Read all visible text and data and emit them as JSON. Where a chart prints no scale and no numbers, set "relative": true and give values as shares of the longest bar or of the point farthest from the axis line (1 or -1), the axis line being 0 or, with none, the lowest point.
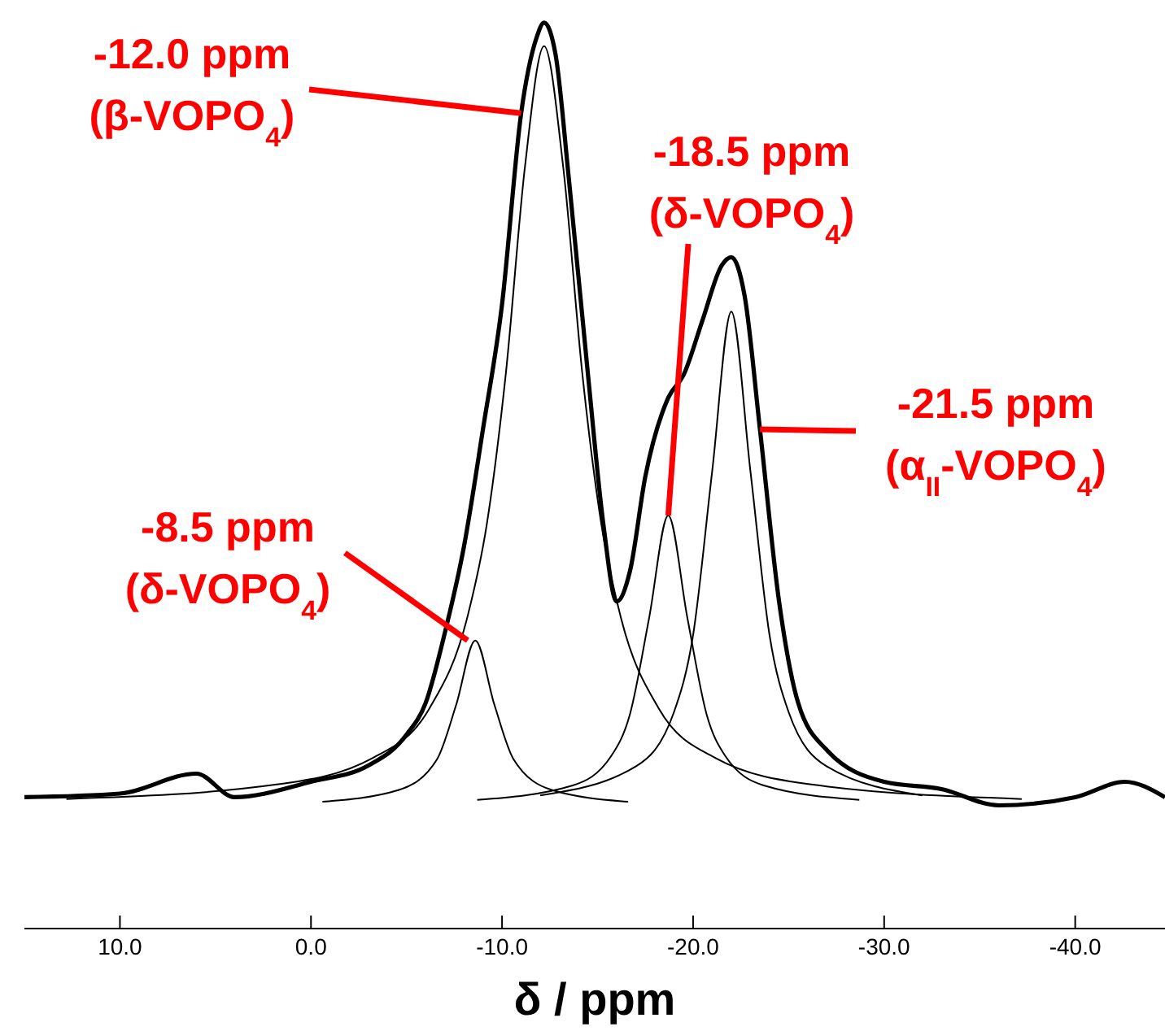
{
  "chart_data": {
    "type": "line",
    "relative": true,
    "xlabel": "δ / ppm",
    "xlim": [
      15,
      -44.7
    ],
    "xticks": [
      {
        "value": 10,
        "label": "10.0"
      },
      {
        "value": 0,
        "label": "0.0"
      },
      {
        "value": -10,
        "label": "-10.0"
      },
      {
        "value": -20,
        "label": "-20.0"
      },
      {
        "value": -30,
        "label": "-30.0"
      },
      {
        "value": -40,
        "label": "-40.0"
      }
    ],
    "grid": false,
    "legend": false,
    "marker": "none",
    "line_style": "solid",
    "series": [
      {
        "color": "#000000",
        "x": [
          15,
          10,
          6,
          4,
          0,
          -3,
          -5,
          -6,
          -7,
          -8,
          -9,
          -10,
          -11,
          -11.8,
          -12.2,
          -12.8,
          -13.5,
          -14.5,
          -15.3,
          -16.0,
          -16.7,
          -17.5,
          -18.7,
          -19.5,
          -20.5,
          -21.5,
          -22.0,
          -22.7,
          -23.5,
          -24.5,
          -25.5,
          -27,
          -30,
          -33,
          -36,
          -40,
          -42.6,
          -44.7
        ],
        "values": [
          0.145,
          0.149,
          0.171,
          0.145,
          0.162,
          0.18,
          0.214,
          0.249,
          0.326,
          0.421,
          0.551,
          0.689,
          0.9,
          0.983,
          1.0,
          0.965,
          0.827,
          0.611,
          0.447,
          0.361,
          0.395,
          0.499,
          0.586,
          0.611,
          0.672,
          0.732,
          0.741,
          0.698,
          0.551,
          0.361,
          0.249,
          0.197,
          0.162,
          0.154,
          0.136,
          0.145,
          0.162,
          0.145
        ]
      },
      {
        "color": "#000000",
        "x": [
          12.8,
          1.8,
          -3.2,
          -6.2,
          -8.2,
          -9.2,
          -10.2,
          -11.2,
          -12.2,
          -13.2,
          -14.2,
          -15.2,
          -16.2,
          -18.2,
          -21.2,
          -26.2,
          -37.2
        ],
        "values": [
          0.143,
          0.159,
          0.188,
          0.243,
          0.345,
          0.446,
          0.613,
          0.841,
          0.974,
          0.841,
          0.613,
          0.446,
          0.345,
          0.243,
          0.188,
          0.159,
          0.143
        ]
      },
      {
        "color": "#000000",
        "x": [
          -0.6,
          -4.6,
          -6.6,
          -7.6,
          -8.6,
          -9.6,
          -10.6,
          -12.6,
          -16.6
        ],
        "values": [
          0.14,
          0.153,
          0.187,
          0.247,
          0.318,
          0.247,
          0.187,
          0.153,
          0.14
        ]
      },
      {
        "color": "#000000",
        "x": [
          -8.7,
          -13.7,
          -15.7,
          -16.7,
          -17.7,
          -18.7,
          -19.7,
          -20.7,
          -21.7,
          -23.7,
          -28.7
        ],
        "values": [
          0.142,
          0.158,
          0.19,
          0.237,
          0.343,
          0.456,
          0.343,
          0.237,
          0.19,
          0.158,
          0.142
        ]
      },
      {
        "color": "#000000",
        "x": [
          -12.0,
          -17.0,
          -19.0,
          -20.0,
          -21.0,
          -22.0,
          -23.0,
          -24.0,
          -25.0,
          -27.0,
          -32.0
        ],
        "values": [
          0.147,
          0.179,
          0.239,
          0.324,
          0.505,
          0.681,
          0.505,
          0.324,
          0.239,
          0.179,
          0.147
        ]
      }
    ],
    "annotations": [
      {
        "text": "-12.0 ppm\n(β-VOPO$_{4}$)",
        "x": -11.0,
        "y": 0.9
      },
      {
        "text": "-18.5 ppm\n(δ-VOPO$_{4}$)",
        "x": -18.7,
        "y": 0.456
      },
      {
        "text": "-21.5 ppm\n(α$_{II}$-VOPO$_{4}$)",
        "x": -23.5,
        "y": 0.551
      },
      {
        "text": "-8.5 ppm\n(δ-VOPO$_{4}$)",
        "x": -8.2,
        "y": 0.318
      }
    ]
  }
}
